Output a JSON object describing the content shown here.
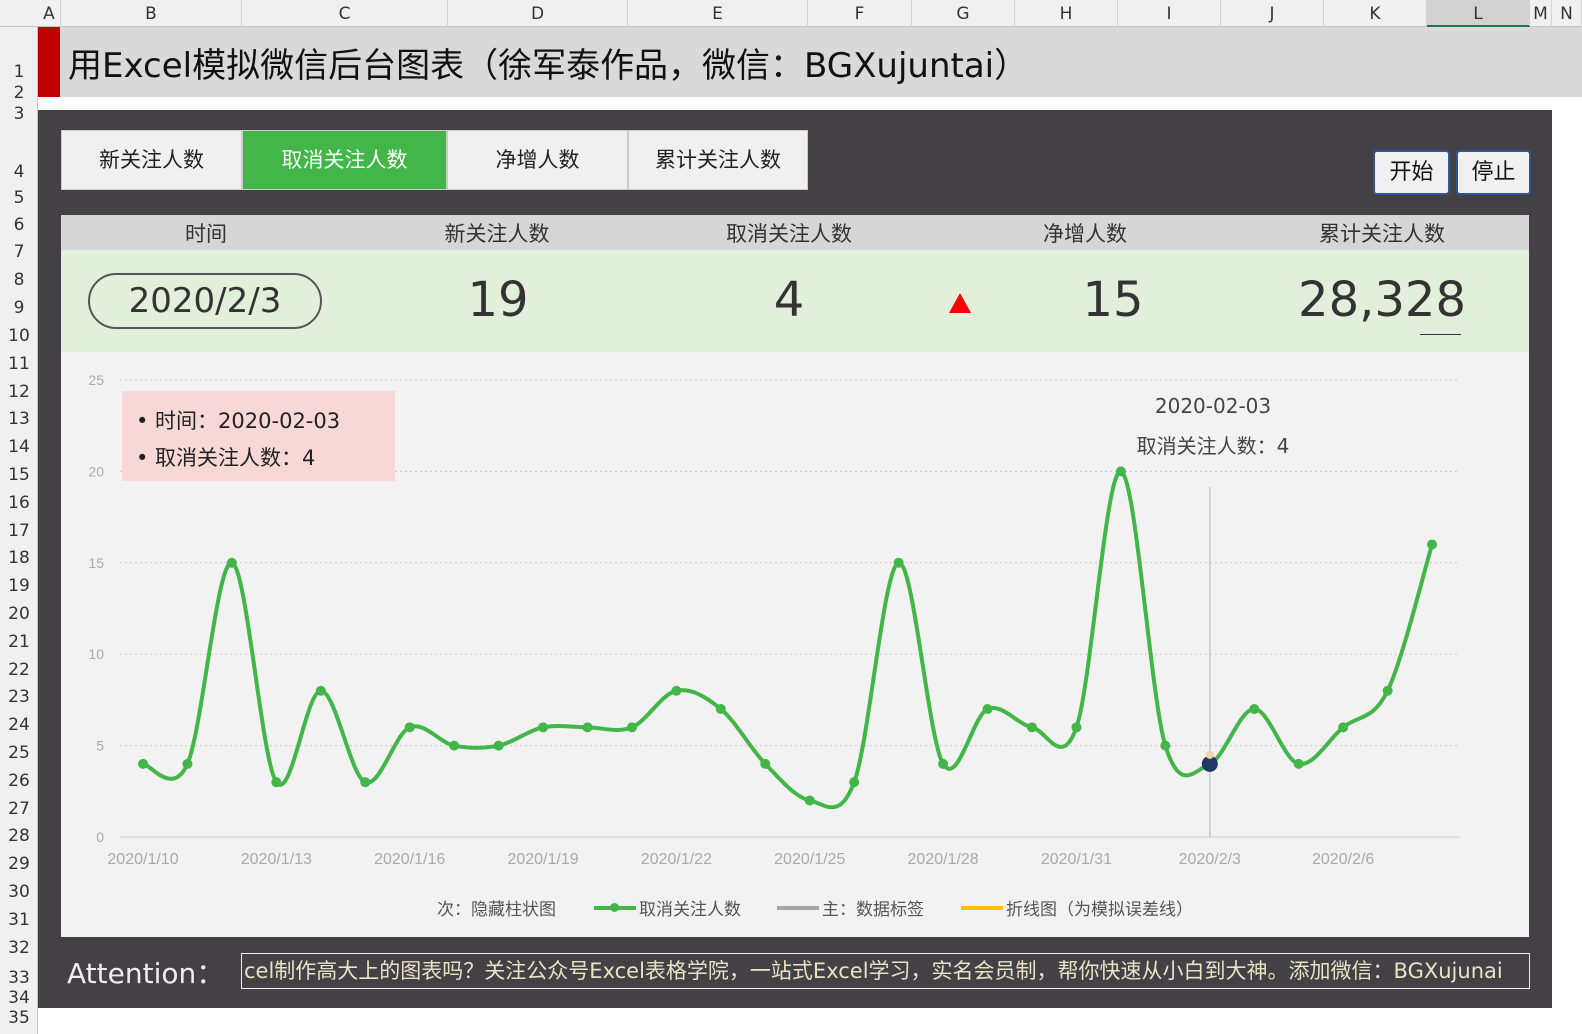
{
  "columns": [
    "A",
    "B",
    "C",
    "D",
    "E",
    "F",
    "G",
    "H",
    "I",
    "J",
    "K",
    "L",
    "M",
    "N"
  ],
  "rows": [
    "1",
    "2",
    "3",
    "4",
    "5",
    "6",
    "7",
    "8",
    "9",
    "10",
    "11",
    "12",
    "13",
    "14",
    "15",
    "16",
    "17",
    "18",
    "19",
    "20",
    "21",
    "22",
    "23",
    "24",
    "25",
    "26",
    "27",
    "28",
    "29",
    "30",
    "31",
    "32",
    "33",
    "34",
    "35"
  ],
  "title": "用Excel模拟微信后台图表（徐军泰作品，微信：BGXujuntai）",
  "tabs": [
    {
      "label": "新关注人数"
    },
    {
      "label": "取消关注人数",
      "active": true
    },
    {
      "label": "净增人数"
    },
    {
      "label": "累计关注人数"
    }
  ],
  "buttons": {
    "start": "开始",
    "stop": "停止"
  },
  "stats": {
    "headers": [
      "时间",
      "新关注人数",
      "取消关注人数",
      "净增人数",
      "累计关注人数"
    ],
    "date": "2020/2/3",
    "new": "19",
    "cancel": "4",
    "net": "15",
    "total": "28,328",
    "trend_icon": "up-triangle-icon",
    "trend_color": "#ff0000"
  },
  "tooltip": {
    "line1": "• 时间：2020-02-03",
    "line2": "• 取消关注人数：4"
  },
  "data_label": {
    "date": "2020-02-03",
    "value": "取消关注人数：4"
  },
  "legend": [
    "次：隐藏柱状图",
    "取消关注人数",
    "主：数据标签",
    "折线图（为模拟误差线）"
  ],
  "attention": {
    "label": "Attention：",
    "text": "cel制作高大上的图表吗？关注公众号Excel表格学院，一站式Excel学习，实名会员制，帮你快速从小白到大神。添加微信：BGXujunai"
  },
  "colors": {
    "accent": "#43b649",
    "panel": "#434146",
    "title_mark": "#c00000",
    "tooltip": "#f8d7d7",
    "error_line": "#ffc000"
  },
  "chart_data": {
    "type": "line",
    "series": [
      {
        "name": "取消关注人数",
        "color": "#43b649",
        "values": [
          4,
          4,
          15,
          3,
          8,
          3,
          6,
          5,
          5,
          6,
          6,
          6,
          8,
          7,
          4,
          2,
          3,
          15,
          4,
          7,
          6,
          6,
          20,
          5,
          4,
          7,
          4,
          6,
          8,
          16
        ]
      }
    ],
    "x": [
      "2020/1/10",
      "2020/1/11",
      "2020/1/12",
      "2020/1/13",
      "2020/1/14",
      "2020/1/15",
      "2020/1/16",
      "2020/1/17",
      "2020/1/18",
      "2020/1/19",
      "2020/1/20",
      "2020/1/21",
      "2020/1/22",
      "2020/1/23",
      "2020/1/24",
      "2020/1/25",
      "2020/1/26",
      "2020/1/27",
      "2020/1/28",
      "2020/1/29",
      "2020/1/30",
      "2020/1/31",
      "2020/2/1",
      "2020/2/2",
      "2020/2/3",
      "2020/2/4",
      "2020/2/5",
      "2020/2/6",
      "2020/2/7",
      "2020/2/8"
    ],
    "xticks": [
      "2020/1/10",
      "2020/1/13",
      "2020/1/16",
      "2020/1/19",
      "2020/1/22",
      "2020/1/25",
      "2020/1/28",
      "2020/1/31",
      "2020/2/3",
      "2020/2/6"
    ],
    "yticks": [
      "0",
      "5",
      "10",
      "15",
      "20",
      "25"
    ],
    "ylim": [
      0,
      25
    ],
    "grid": true,
    "highlight": "2020/2/3",
    "smooth": true,
    "legend_position": "bottom"
  }
}
